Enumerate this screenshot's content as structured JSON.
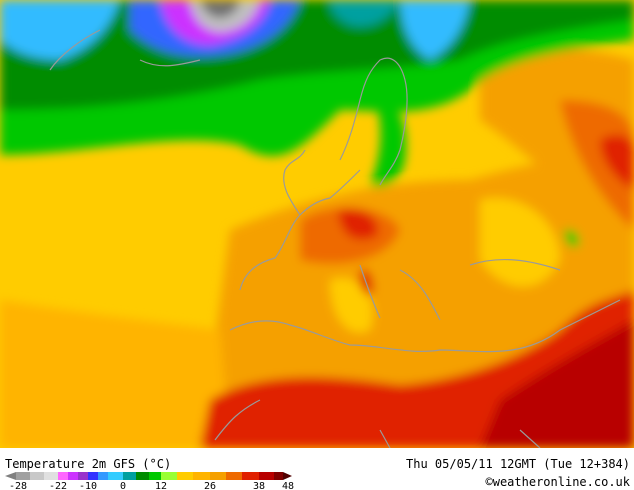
{
  "header": {
    "title": "Temperature 2m GFS (°C)",
    "date": "Thu 05/05/11 12GMT (Tue 12+384)",
    "credit": "©weatheronline.co.uk"
  },
  "legend": {
    "ticks": [
      -28,
      -22,
      -10,
      0,
      12,
      26,
      38,
      48
    ]
  }
}
